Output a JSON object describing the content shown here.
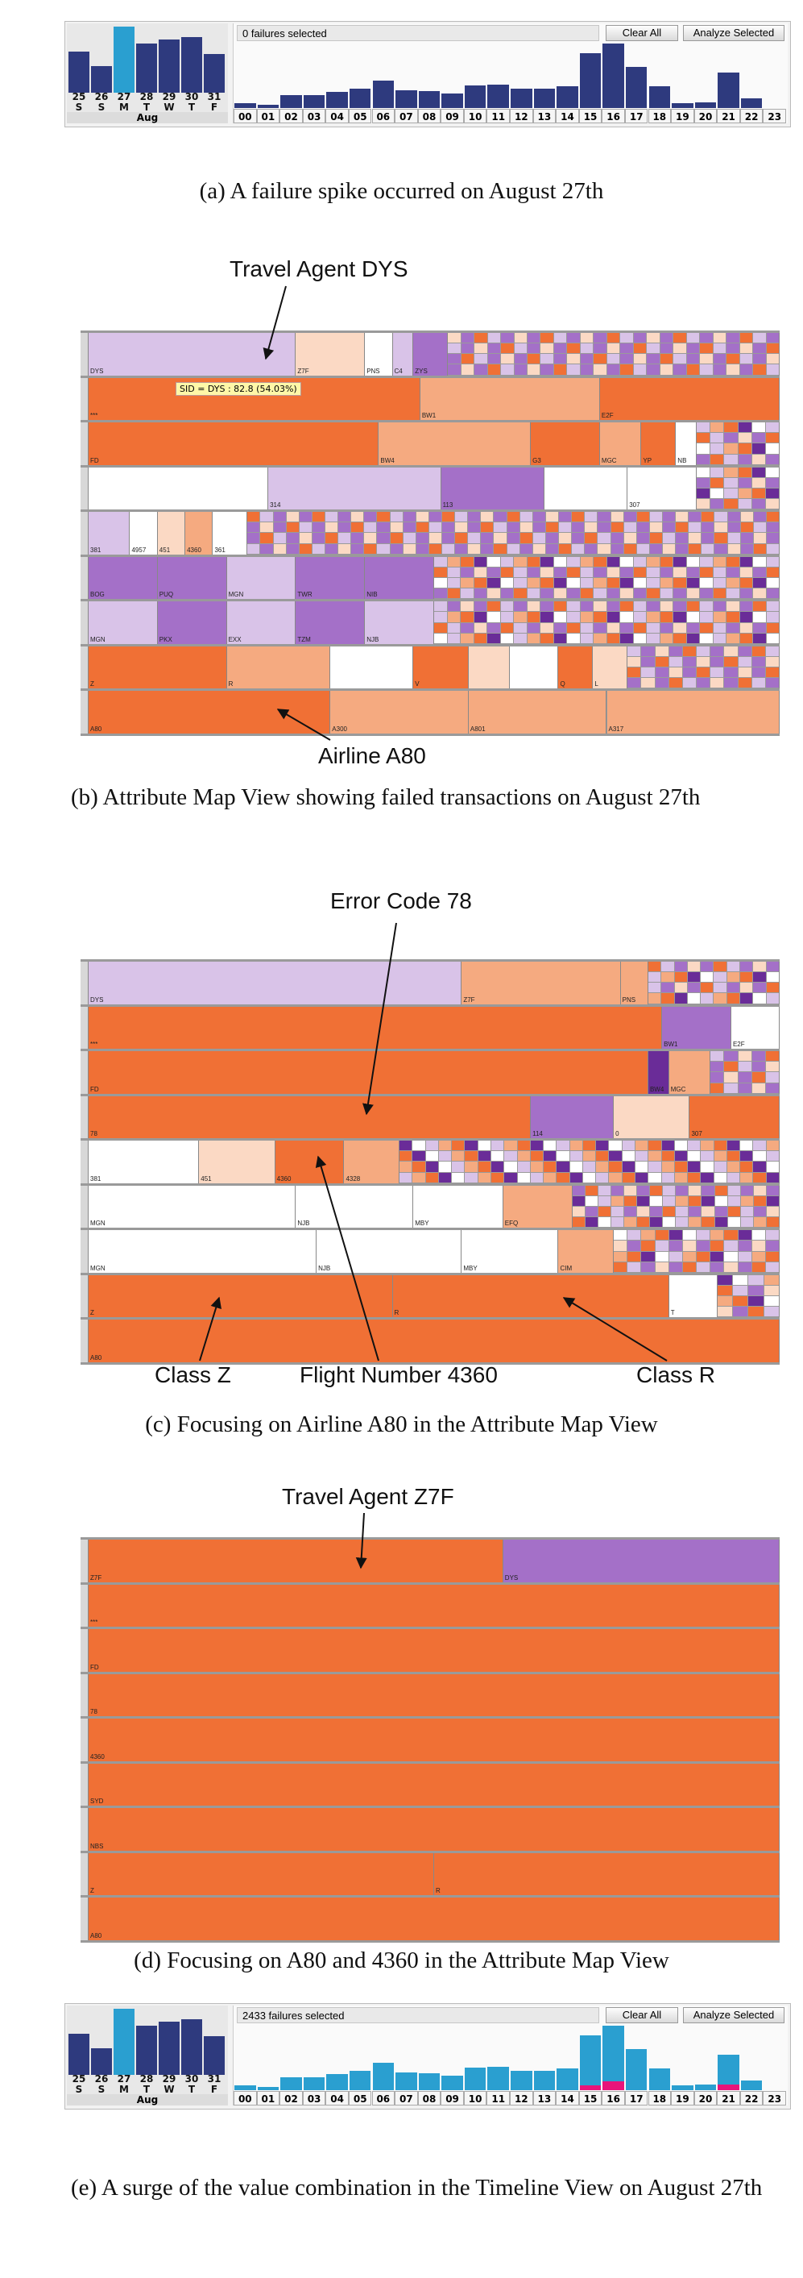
{
  "timeline_a": {
    "status": "0 failures selected",
    "clear_label": "Clear All",
    "analyze_label": "Analyze Selected",
    "days": [
      "25",
      "26",
      "27",
      "28",
      "29",
      "30",
      "31"
    ],
    "dow": [
      "S",
      "S",
      "M",
      "T",
      "W",
      "T",
      "F"
    ],
    "month": "Aug",
    "day_values": [
      62,
      40,
      100,
      75,
      80,
      84,
      58
    ],
    "selected_day": 2,
    "hours": [
      "00",
      "01",
      "02",
      "03",
      "04",
      "05",
      "06",
      "07",
      "08",
      "09",
      "10",
      "11",
      "12",
      "13",
      "14",
      "15",
      "16",
      "17",
      "18",
      "19",
      "20",
      "21",
      "22",
      "23"
    ],
    "hour_values": [
      5,
      4,
      14,
      14,
      18,
      22,
      31,
      20,
      19,
      16,
      25,
      26,
      22,
      22,
      24,
      61,
      72,
      46,
      24,
      5,
      6,
      40,
      11,
      0
    ],
    "highlight_values": []
  },
  "timeline_e": {
    "status": "2433 failures selected",
    "clear_label": "Clear All",
    "analyze_label": "Analyze Selected",
    "days": [
      "25",
      "26",
      "27",
      "28",
      "29",
      "30",
      "31"
    ],
    "dow": [
      "S",
      "S",
      "M",
      "T",
      "W",
      "T",
      "F"
    ],
    "month": "Aug",
    "day_values": [
      62,
      40,
      100,
      75,
      80,
      84,
      58
    ],
    "selected_day": 2,
    "hours": [
      "00",
      "01",
      "02",
      "03",
      "04",
      "05",
      "06",
      "07",
      "08",
      "09",
      "10",
      "11",
      "12",
      "13",
      "14",
      "15",
      "16",
      "17",
      "18",
      "19",
      "20",
      "21",
      "22",
      "23"
    ],
    "hour_values": [
      5,
      4,
      14,
      14,
      18,
      22,
      31,
      20,
      19,
      16,
      25,
      26,
      22,
      22,
      24,
      61,
      72,
      46,
      24,
      5,
      6,
      40,
      11,
      0
    ],
    "highlight_values": [
      0,
      0,
      0,
      0,
      0,
      0,
      0,
      0,
      0,
      0,
      0,
      0,
      0,
      0,
      0,
      5,
      10,
      0,
      0,
      0,
      0,
      6,
      0,
      0
    ]
  },
  "captions": {
    "a": "(a)  A failure spike occurred on August 27th",
    "b": "(b)  Attribute Map View showing failed transactions on August 27th",
    "c": "(c)  Focusing on Airline A80 in the Attribute Map View",
    "d": "(d)  Focusing on A80 and 4360 in the Attribute Map View",
    "e": "(e)  A surge of the value combination in the Timeline View on August 27th"
  },
  "annotations": {
    "b_top": "Travel Agent DYS",
    "b_bottom": "Airline A80",
    "b_tooltip": "SID = DYS : 82.8 (54.03%)",
    "c_top": "Error Code 78",
    "c_class_z": "Class Z",
    "c_flight": "Flight Number 4360",
    "c_class_r": "Class R",
    "d_top": "Travel Agent Z7F"
  },
  "colors": {
    "dark_blue": "#2e3a7e",
    "light_blue": "#2a9fd0",
    "magenta": "#e8147a",
    "orange": "#f07035",
    "light_orange": "#f5aa80",
    "pale_orange": "#fbd9c4",
    "light_purple": "#d9c3e8",
    "purple": "#a470c8",
    "dark_purple": "#6a2c98",
    "white": "#ffffff"
  },
  "map_b": {
    "rows": [
      {
        "cells": [
          [
            "DYS",
            0.3,
            "light_purple"
          ],
          [
            "Z7F",
            0.1,
            "pale_orange"
          ],
          [
            "PNS",
            0.04,
            "white"
          ],
          [
            "C4",
            0.03,
            "light_purple"
          ],
          [
            "ZYS",
            0.05,
            "purple"
          ],
          [
            "...",
            0.48,
            "mixed"
          ]
        ]
      },
      {
        "cells": [
          [
            "***",
            0.48,
            "orange"
          ],
          [
            "BW1",
            0.26,
            "light_orange"
          ],
          [
            "E2F",
            0.26,
            "orange"
          ]
        ]
      },
      {
        "cells": [
          [
            "FD",
            0.42,
            "orange"
          ],
          [
            "BW4",
            0.22,
            "light_orange"
          ],
          [
            "G3",
            0.1,
            "orange"
          ],
          [
            "MGC",
            0.06,
            "light_orange"
          ],
          [
            "YP",
            0.05,
            "orange"
          ],
          [
            "NB",
            0.03,
            "white"
          ],
          [
            "...",
            0.12,
            "mixed"
          ]
        ]
      },
      {
        "cells": [
          [
            "",
            0.26,
            "white"
          ],
          [
            "314",
            0.25,
            "light_purple"
          ],
          [
            "113",
            0.15,
            "purple"
          ],
          [
            "",
            0.12,
            "white"
          ],
          [
            "307",
            0.1,
            "white"
          ],
          [
            "...",
            0.12,
            "mixed"
          ]
        ]
      },
      {
        "cells": [
          [
            "381",
            0.06,
            "light_purple"
          ],
          [
            "4957",
            0.04,
            "white"
          ],
          [
            "451",
            0.04,
            "pale_orange"
          ],
          [
            "4360",
            0.04,
            "light_orange"
          ],
          [
            "361",
            0.05,
            "white"
          ],
          [
            "...",
            0.77,
            "mixed"
          ]
        ]
      },
      {
        "cells": [
          [
            "BOG",
            0.1,
            "purple"
          ],
          [
            "PUQ",
            0.1,
            "purple"
          ],
          [
            "MGN",
            0.1,
            "light_purple"
          ],
          [
            "TWR",
            0.1,
            "purple"
          ],
          [
            "NIB",
            0.1,
            "purple"
          ],
          [
            "...",
            0.5,
            "mixed"
          ]
        ]
      },
      {
        "cells": [
          [
            "MGN",
            0.1,
            "light_purple"
          ],
          [
            "PKX",
            0.1,
            "purple"
          ],
          [
            "EXX",
            0.1,
            "light_purple"
          ],
          [
            "TZM",
            0.1,
            "purple"
          ],
          [
            "NJB",
            0.1,
            "light_purple"
          ],
          [
            "...",
            0.5,
            "mixed"
          ]
        ]
      },
      {
        "cells": [
          [
            "Z",
            0.2,
            "orange"
          ],
          [
            "R",
            0.15,
            "light_orange"
          ],
          [
            "",
            0.12,
            "white"
          ],
          [
            "V",
            0.08,
            "orange"
          ],
          [
            "",
            0.06,
            "pale_orange"
          ],
          [
            "",
            0.07,
            "white"
          ],
          [
            "Q",
            0.05,
            "orange"
          ],
          [
            "L",
            0.05,
            "pale_orange"
          ],
          [
            "...",
            0.22,
            "mixed"
          ]
        ]
      },
      {
        "cells": [
          [
            "A80",
            0.35,
            "orange"
          ],
          [
            "A300",
            0.2,
            "light_orange"
          ],
          [
            "A801",
            0.2,
            "light_orange"
          ],
          [
            "A317",
            0.25,
            "light_orange"
          ]
        ]
      }
    ]
  },
  "map_c": {
    "rows": [
      {
        "cells": [
          [
            "DYS",
            0.54,
            "light_purple"
          ],
          [
            "Z7F",
            0.23,
            "light_orange"
          ],
          [
            "PNS",
            0.04,
            "light_orange"
          ],
          [
            "...",
            0.19,
            "mixed"
          ]
        ]
      },
      {
        "cells": [
          [
            "***",
            0.83,
            "orange"
          ],
          [
            "BW1",
            0.1,
            "purple"
          ],
          [
            "E2F",
            0.07,
            "white"
          ]
        ]
      },
      {
        "cells": [
          [
            "FD",
            0.81,
            "orange"
          ],
          [
            "BW4",
            0.03,
            "dark_purple"
          ],
          [
            "MGC",
            0.06,
            "light_orange"
          ],
          [
            "...",
            0.1,
            "mixed"
          ]
        ]
      },
      {
        "cells": [
          [
            "78",
            0.64,
            "orange"
          ],
          [
            "114",
            0.12,
            "purple"
          ],
          [
            "0",
            0.11,
            "pale_orange"
          ],
          [
            "307",
            0.13,
            "orange"
          ]
        ]
      },
      {
        "cells": [
          [
            "381",
            0.16,
            "white"
          ],
          [
            "451",
            0.11,
            "pale_orange"
          ],
          [
            "4360",
            0.1,
            "orange"
          ],
          [
            "4328",
            0.08,
            "light_orange"
          ],
          [
            "...",
            0.55,
            "mixed"
          ]
        ]
      },
      {
        "cells": [
          [
            "MGN",
            0.3,
            "white"
          ],
          [
            "NJB",
            0.17,
            "white"
          ],
          [
            "MBY",
            0.13,
            "white"
          ],
          [
            "EFQ",
            0.1,
            "light_orange"
          ],
          [
            "...",
            0.3,
            "mixed"
          ]
        ]
      },
      {
        "cells": [
          [
            "MGN",
            0.33,
            "white"
          ],
          [
            "NJB",
            0.21,
            "white"
          ],
          [
            "MBY",
            0.14,
            "white"
          ],
          [
            "CIM",
            0.08,
            "light_orange"
          ],
          [
            "...",
            0.24,
            "mixed"
          ]
        ]
      },
      {
        "cells": [
          [
            "Z",
            0.44,
            "orange"
          ],
          [
            "R",
            0.4,
            "orange"
          ],
          [
            "T",
            0.07,
            "white"
          ],
          [
            "...",
            0.09,
            "mixed"
          ]
        ]
      },
      {
        "cells": [
          [
            "A80",
            1.0,
            "orange"
          ]
        ]
      }
    ]
  },
  "map_d": {
    "rows": [
      {
        "cells": [
          [
            "Z7F",
            0.6,
            "orange"
          ],
          [
            "DYS",
            0.4,
            "purple"
          ]
        ]
      },
      {
        "cells": [
          [
            "***",
            1.0,
            "orange"
          ]
        ]
      },
      {
        "cells": [
          [
            "FD",
            1.0,
            "orange"
          ]
        ]
      },
      {
        "cells": [
          [
            "78",
            1.0,
            "orange"
          ]
        ]
      },
      {
        "cells": [
          [
            "4360",
            1.0,
            "orange"
          ]
        ]
      },
      {
        "cells": [
          [
            "SYD",
            1.0,
            "orange"
          ]
        ]
      },
      {
        "cells": [
          [
            "NBS",
            1.0,
            "orange"
          ]
        ]
      },
      {
        "cells": [
          [
            "Z",
            0.5,
            "orange"
          ],
          [
            "R",
            0.5,
            "orange"
          ]
        ]
      },
      {
        "cells": [
          [
            "A80",
            1.0,
            "orange"
          ]
        ]
      }
    ]
  }
}
